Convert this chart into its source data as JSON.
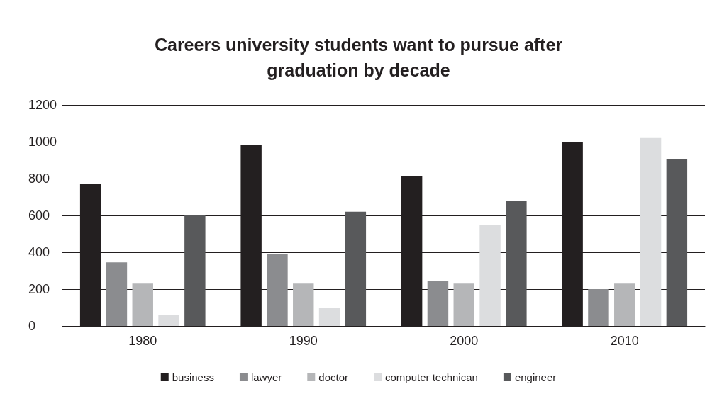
{
  "chart_data": {
    "type": "bar",
    "title": "Careers university students want to pursue after\ngraduation by decade",
    "categories": [
      "1980",
      "1990",
      "2000",
      "2010"
    ],
    "series": [
      {
        "name": "business",
        "color": "#231f20",
        "values": [
          770,
          985,
          815,
          1000
        ]
      },
      {
        "name": "lawyer",
        "color": "#8b8c8f",
        "values": [
          345,
          390,
          245,
          200
        ]
      },
      {
        "name": "doctor",
        "color": "#b5b6b8",
        "values": [
          230,
          230,
          230,
          230
        ]
      },
      {
        "name": "computer technican",
        "color": "#dcdddf",
        "values": [
          60,
          100,
          550,
          1020
        ]
      },
      {
        "name": "engineer",
        "color": "#58595b",
        "values": [
          600,
          620,
          680,
          905
        ]
      }
    ],
    "ylim": [
      0,
      1200
    ],
    "yticks": [
      0,
      200,
      400,
      600,
      800,
      1000,
      1200
    ],
    "grid": "y",
    "legend": "bottom"
  }
}
